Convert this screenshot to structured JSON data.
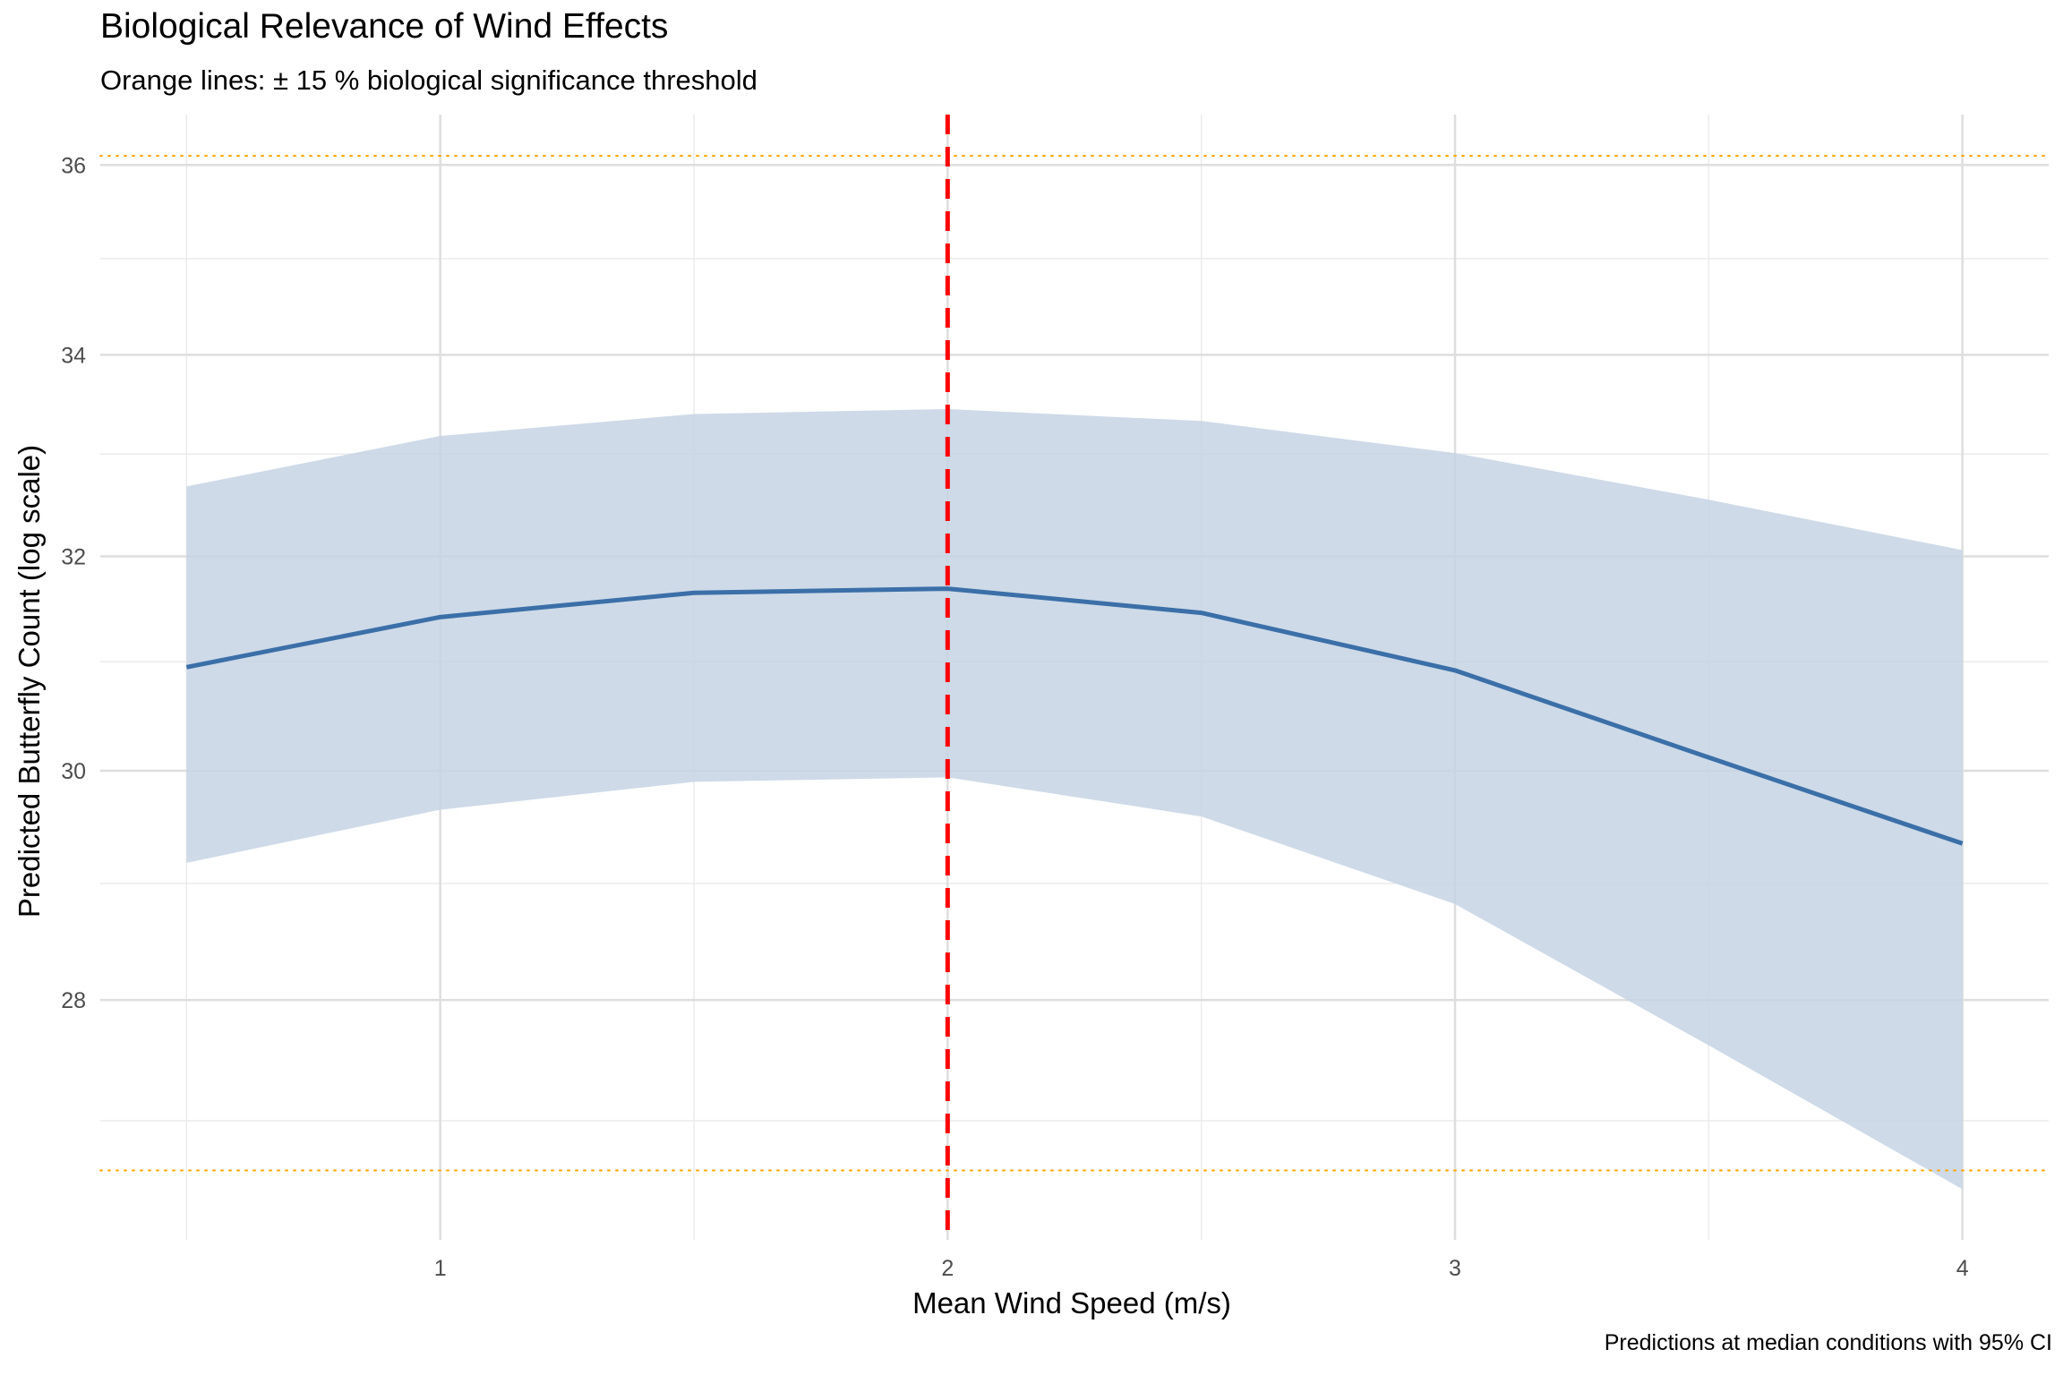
{
  "chart_data": {
    "type": "line",
    "title": "Biological Relevance of Wind Effects",
    "subtitle": "Orange lines: ± 15 % biological significance threshold",
    "caption": "Predictions at median conditions with 95% CI",
    "xlabel": "Mean Wind Speed (m/s)",
    "ylabel": "Predicted Butterfly Count (log scale)",
    "x_ticks": [
      1,
      2,
      3,
      4
    ],
    "y_ticks": [
      28,
      30,
      32,
      34,
      36
    ],
    "x_range": [
      0.33,
      4.17
    ],
    "y_range": [
      26.05,
      36.55
    ],
    "log_scale_y": true,
    "grid": true,
    "series": [
      {
        "x": [
          0.5,
          1.0,
          1.5,
          2.0,
          2.5,
          3.0,
          3.5,
          4.0
        ],
        "y": [
          30.95,
          31.42,
          31.65,
          31.69,
          31.46,
          30.92,
          30.12,
          29.35
        ],
        "lower": [
          29.18,
          29.65,
          29.9,
          29.94,
          29.59,
          28.82,
          27.62,
          26.45
        ],
        "upper": [
          32.68,
          33.18,
          33.4,
          33.45,
          33.33,
          33.01,
          32.55,
          32.06
        ],
        "color": "#3b6fa8",
        "ribbon_color": "#c5d4e4"
      }
    ],
    "reference_lines": {
      "vertical": {
        "x": 2.0,
        "color": "#ff0000",
        "style": "dashed"
      },
      "horizontal": [
        {
          "y": 26.6,
          "color": "#ffa500",
          "style": "dotted"
        },
        {
          "y": 36.1,
          "color": "#ffa500",
          "style": "dotted"
        }
      ]
    }
  }
}
